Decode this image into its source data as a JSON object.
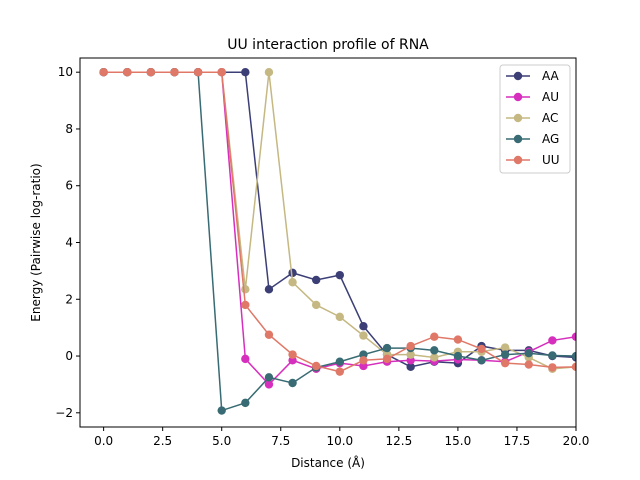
{
  "chart_data": {
    "type": "line",
    "title": "UU interaction profile of  RNA",
    "xlabel": "Distance (Å)",
    "ylabel": "Energy (Pairwise log-ratio)",
    "xlim": [
      -1.0,
      20.0
    ],
    "ylim": [
      -2.5,
      10.5
    ],
    "x_ticks": [
      0.0,
      2.5,
      5.0,
      7.5,
      10.0,
      12.5,
      15.0,
      17.5,
      20.0
    ],
    "x_tick_labels": [
      "0.0",
      "2.5",
      "5.0",
      "7.5",
      "10.0",
      "12.5",
      "15.0",
      "17.5",
      "20.0"
    ],
    "y_ticks": [
      -2,
      0,
      2,
      4,
      6,
      8,
      10
    ],
    "y_tick_labels": [
      "−2",
      "0",
      "2",
      "4",
      "6",
      "8",
      "10"
    ],
    "grid": false,
    "legend_position": "top-right",
    "x": [
      0,
      1,
      2,
      3,
      4,
      5,
      6,
      7,
      8,
      9,
      10,
      11,
      12,
      13,
      14,
      15,
      16,
      17,
      18,
      19,
      20
    ],
    "series": [
      {
        "name": "AA",
        "color": "#3b3f76",
        "values": [
          10,
          10,
          10,
          10,
          10,
          10,
          10,
          2.35,
          2.93,
          2.68,
          2.85,
          1.05,
          0.05,
          -0.38,
          -0.2,
          -0.25,
          0.35,
          0.2,
          0.2,
          0.0,
          -0.05
        ]
      },
      {
        "name": "AU",
        "color": "#d62fbd",
        "values": [
          10,
          10,
          10,
          10,
          10,
          10,
          -0.1,
          -1.0,
          -0.15,
          -0.45,
          -0.25,
          -0.35,
          -0.2,
          -0.15,
          -0.18,
          -0.12,
          -0.15,
          -0.2,
          0.15,
          0.55,
          0.68
        ]
      },
      {
        "name": "AC",
        "color": "#c5b882",
        "values": [
          10,
          10,
          10,
          10,
          10,
          10,
          2.35,
          10,
          2.6,
          1.8,
          1.38,
          0.72,
          0.05,
          0.05,
          -0.05,
          0.15,
          0.15,
          0.3,
          -0.05,
          -0.45,
          -0.38
        ]
      },
      {
        "name": "AG",
        "color": "#386b73",
        "values": [
          10,
          10,
          10,
          10,
          10,
          -1.92,
          -1.65,
          -0.75,
          -0.95,
          -0.4,
          -0.2,
          0.05,
          0.28,
          0.28,
          0.2,
          0.0,
          -0.15,
          0.05,
          0.1,
          0.02,
          0.0
        ]
      },
      {
        "name": "UU",
        "color": "#e07868",
        "values": [
          10,
          10,
          10,
          10,
          10,
          10,
          1.8,
          0.75,
          0.05,
          -0.35,
          -0.55,
          -0.15,
          -0.1,
          0.35,
          0.68,
          0.58,
          0.25,
          -0.25,
          -0.3,
          -0.4,
          -0.38
        ]
      }
    ]
  }
}
